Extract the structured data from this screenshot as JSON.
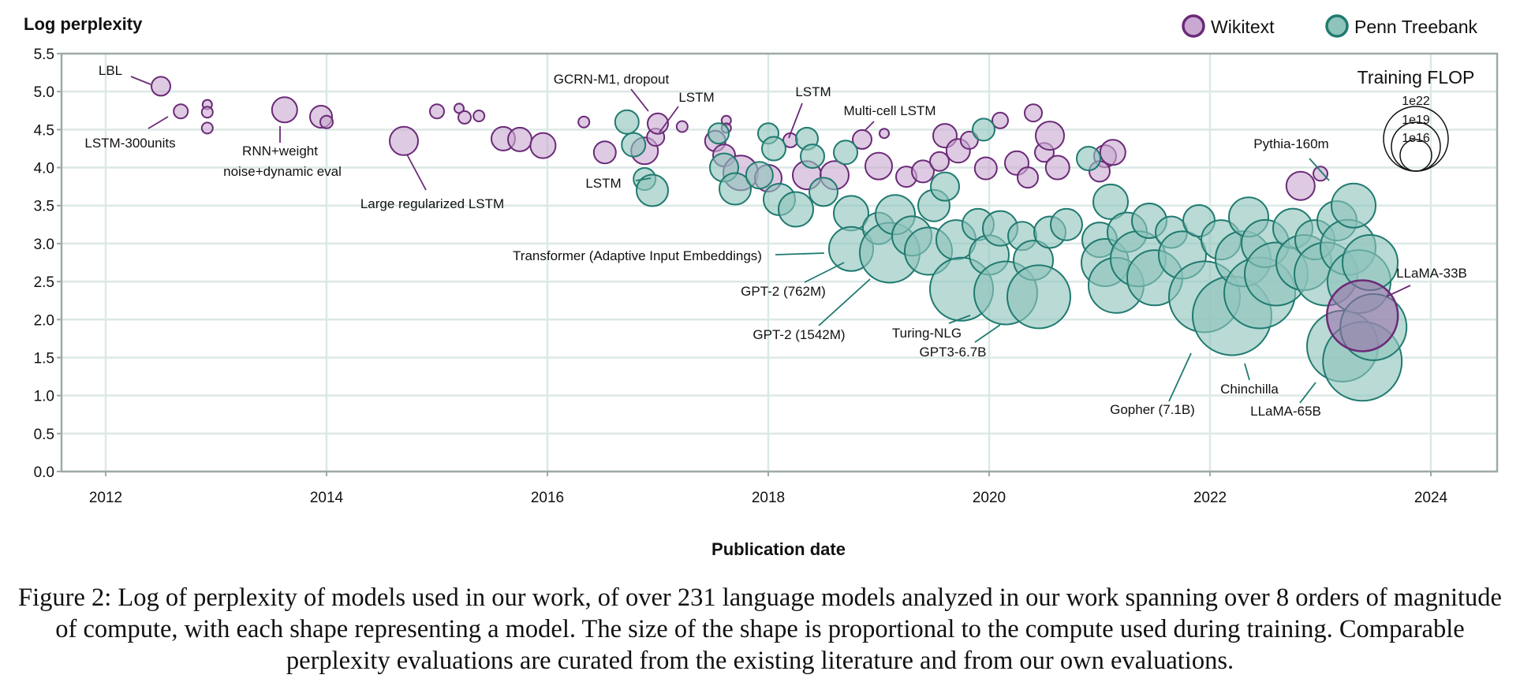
{
  "chart_data": {
    "type": "scatter",
    "ylabel": "Log perplexity",
    "xlabel": "Publication date",
    "xlim": [
      2011.6,
      2024.6
    ],
    "ylim": [
      0.0,
      5.5
    ],
    "x_ticks": [
      2012,
      2014,
      2016,
      2018,
      2020,
      2022,
      2024
    ],
    "y_ticks": [
      0.0,
      0.5,
      1.0,
      1.5,
      2.0,
      2.5,
      3.0,
      3.5,
      4.0,
      4.5,
      5.0,
      5.5
    ],
    "y_tick_labels": [
      "0.0",
      "0.5",
      "1.0",
      "1.5",
      "2.0",
      "2.5",
      "3.0",
      "3.5",
      "4.0",
      "4.5",
      "5.0",
      "5.5"
    ],
    "grid": true,
    "legend_position": "top-right",
    "size_encoding": "Training FLOP",
    "size_legend": {
      "title": "Training FLOP",
      "labels": [
        "1e22",
        "1e19",
        "1e16"
      ]
    },
    "series": [
      {
        "name": "Wikitext",
        "color": "#6b2a78",
        "fill": "#c9a9d1",
        "points": [
          {
            "x": 2012.5,
            "y": 5.07,
            "r": 12
          },
          {
            "x": 2012.68,
            "y": 4.74,
            "r": 9
          },
          {
            "x": 2012.92,
            "y": 4.83,
            "r": 6
          },
          {
            "x": 2012.92,
            "y": 4.73,
            "r": 7
          },
          {
            "x": 2012.92,
            "y": 4.52,
            "r": 7
          },
          {
            "x": 2013.62,
            "y": 4.76,
            "r": 16
          },
          {
            "x": 2013.95,
            "y": 4.67,
            "r": 14
          },
          {
            "x": 2014.0,
            "y": 4.6,
            "r": 8
          },
          {
            "x": 2014.7,
            "y": 4.35,
            "r": 18
          },
          {
            "x": 2015.0,
            "y": 4.74,
            "r": 9
          },
          {
            "x": 2015.2,
            "y": 4.78,
            "r": 6
          },
          {
            "x": 2015.25,
            "y": 4.66,
            "r": 8
          },
          {
            "x": 2015.38,
            "y": 4.68,
            "r": 7
          },
          {
            "x": 2015.6,
            "y": 4.38,
            "r": 15
          },
          {
            "x": 2015.75,
            "y": 4.37,
            "r": 15
          },
          {
            "x": 2015.96,
            "y": 4.29,
            "r": 16
          },
          {
            "x": 2016.33,
            "y": 4.6,
            "r": 7
          },
          {
            "x": 2016.52,
            "y": 4.2,
            "r": 14
          },
          {
            "x": 2016.88,
            "y": 4.22,
            "r": 17
          },
          {
            "x": 2016.98,
            "y": 4.4,
            "r": 11
          },
          {
            "x": 2017.0,
            "y": 4.58,
            "r": 13
          },
          {
            "x": 2017.22,
            "y": 4.54,
            "r": 7
          },
          {
            "x": 2017.52,
            "y": 4.35,
            "r": 13
          },
          {
            "x": 2017.62,
            "y": 4.62,
            "r": 6
          },
          {
            "x": 2017.62,
            "y": 4.52,
            "r": 6
          },
          {
            "x": 2017.6,
            "y": 4.16,
            "r": 14
          },
          {
            "x": 2017.75,
            "y": 3.93,
            "r": 22
          },
          {
            "x": 2018.0,
            "y": 3.86,
            "r": 17
          },
          {
            "x": 2018.2,
            "y": 4.36,
            "r": 9
          },
          {
            "x": 2018.35,
            "y": 3.9,
            "r": 18
          },
          {
            "x": 2018.6,
            "y": 3.9,
            "r": 18
          },
          {
            "x": 2018.85,
            "y": 4.37,
            "r": 12
          },
          {
            "x": 2019.05,
            "y": 4.45,
            "r": 6
          },
          {
            "x": 2019.0,
            "y": 4.02,
            "r": 17
          },
          {
            "x": 2019.25,
            "y": 3.88,
            "r": 13
          },
          {
            "x": 2019.4,
            "y": 3.95,
            "r": 14
          },
          {
            "x": 2019.55,
            "y": 4.08,
            "r": 12
          },
          {
            "x": 2019.6,
            "y": 4.42,
            "r": 15
          },
          {
            "x": 2019.72,
            "y": 4.22,
            "r": 15
          },
          {
            "x": 2019.82,
            "y": 4.36,
            "r": 11
          },
          {
            "x": 2019.97,
            "y": 3.99,
            "r": 14
          },
          {
            "x": 2020.1,
            "y": 4.62,
            "r": 10
          },
          {
            "x": 2020.25,
            "y": 4.06,
            "r": 15
          },
          {
            "x": 2020.35,
            "y": 3.87,
            "r": 13
          },
          {
            "x": 2020.4,
            "y": 4.72,
            "r": 11
          },
          {
            "x": 2020.5,
            "y": 4.2,
            "r": 12
          },
          {
            "x": 2020.55,
            "y": 4.42,
            "r": 18
          },
          {
            "x": 2020.62,
            "y": 4.0,
            "r": 15
          },
          {
            "x": 2021.05,
            "y": 4.15,
            "r": 14
          },
          {
            "x": 2021.0,
            "y": 3.95,
            "r": 13
          },
          {
            "x": 2021.12,
            "y": 4.2,
            "r": 16
          },
          {
            "x": 2022.82,
            "y": 3.76,
            "r": 18
          },
          {
            "x": 2023.0,
            "y": 3.92,
            "r": 9
          },
          {
            "x": 2023.38,
            "y": 2.05,
            "r": 45
          }
        ]
      },
      {
        "name": "Penn Treebank",
        "color": "#207a70",
        "fill": "#8ec4bb",
        "points": [
          {
            "x": 2016.72,
            "y": 4.6,
            "r": 15
          },
          {
            "x": 2016.78,
            "y": 4.3,
            "r": 15
          },
          {
            "x": 2016.88,
            "y": 3.85,
            "r": 14
          },
          {
            "x": 2016.95,
            "y": 3.7,
            "r": 20
          },
          {
            "x": 2017.55,
            "y": 4.45,
            "r": 13
          },
          {
            "x": 2017.6,
            "y": 4.0,
            "r": 18
          },
          {
            "x": 2017.7,
            "y": 3.72,
            "r": 20
          },
          {
            "x": 2017.92,
            "y": 3.9,
            "r": 17
          },
          {
            "x": 2018.0,
            "y": 4.45,
            "r": 13
          },
          {
            "x": 2018.05,
            "y": 4.25,
            "r": 15
          },
          {
            "x": 2018.1,
            "y": 3.58,
            "r": 20
          },
          {
            "x": 2018.25,
            "y": 3.45,
            "r": 22
          },
          {
            "x": 2018.35,
            "y": 4.38,
            "r": 14
          },
          {
            "x": 2018.4,
            "y": 4.15,
            "r": 15
          },
          {
            "x": 2018.5,
            "y": 3.68,
            "r": 18
          },
          {
            "x": 2018.7,
            "y": 4.2,
            "r": 15
          },
          {
            "x": 2018.75,
            "y": 3.4,
            "r": 22
          },
          {
            "x": 2018.75,
            "y": 2.93,
            "r": 28
          },
          {
            "x": 2019.0,
            "y": 3.2,
            "r": 20
          },
          {
            "x": 2019.1,
            "y": 2.88,
            "r": 38
          },
          {
            "x": 2019.15,
            "y": 3.38,
            "r": 25
          },
          {
            "x": 2019.3,
            "y": 3.1,
            "r": 25
          },
          {
            "x": 2019.45,
            "y": 2.9,
            "r": 30
          },
          {
            "x": 2019.5,
            "y": 3.5,
            "r": 20
          },
          {
            "x": 2019.6,
            "y": 3.75,
            "r": 18
          },
          {
            "x": 2019.7,
            "y": 3.05,
            "r": 25
          },
          {
            "x": 2019.75,
            "y": 2.4,
            "r": 40
          },
          {
            "x": 2019.9,
            "y": 3.25,
            "r": 20
          },
          {
            "x": 2019.95,
            "y": 4.5,
            "r": 14
          },
          {
            "x": 2020.0,
            "y": 2.85,
            "r": 25
          },
          {
            "x": 2020.1,
            "y": 3.2,
            "r": 22
          },
          {
            "x": 2020.15,
            "y": 2.35,
            "r": 40
          },
          {
            "x": 2020.3,
            "y": 3.1,
            "r": 18
          },
          {
            "x": 2020.4,
            "y": 2.78,
            "r": 25
          },
          {
            "x": 2020.45,
            "y": 2.3,
            "r": 40
          },
          {
            "x": 2020.55,
            "y": 3.15,
            "r": 20
          },
          {
            "x": 2020.7,
            "y": 3.25,
            "r": 20
          },
          {
            "x": 2020.9,
            "y": 4.12,
            "r": 15
          },
          {
            "x": 2021.0,
            "y": 3.05,
            "r": 22
          },
          {
            "x": 2021.05,
            "y": 2.75,
            "r": 30
          },
          {
            "x": 2021.1,
            "y": 3.55,
            "r": 22
          },
          {
            "x": 2021.15,
            "y": 2.45,
            "r": 35
          },
          {
            "x": 2021.25,
            "y": 3.15,
            "r": 25
          },
          {
            "x": 2021.35,
            "y": 2.8,
            "r": 35
          },
          {
            "x": 2021.45,
            "y": 3.3,
            "r": 22
          },
          {
            "x": 2021.5,
            "y": 2.55,
            "r": 35
          },
          {
            "x": 2021.65,
            "y": 3.15,
            "r": 20
          },
          {
            "x": 2021.75,
            "y": 2.85,
            "r": 30
          },
          {
            "x": 2021.9,
            "y": 3.3,
            "r": 20
          },
          {
            "x": 2021.95,
            "y": 2.3,
            "r": 45
          },
          {
            "x": 2022.1,
            "y": 3.05,
            "r": 25
          },
          {
            "x": 2022.2,
            "y": 2.05,
            "r": 50
          },
          {
            "x": 2022.3,
            "y": 2.8,
            "r": 35
          },
          {
            "x": 2022.35,
            "y": 3.35,
            "r": 25
          },
          {
            "x": 2022.45,
            "y": 2.35,
            "r": 45
          },
          {
            "x": 2022.5,
            "y": 3.0,
            "r": 30
          },
          {
            "x": 2022.6,
            "y": 2.6,
            "r": 40
          },
          {
            "x": 2022.75,
            "y": 3.2,
            "r": 25
          },
          {
            "x": 2022.85,
            "y": 2.75,
            "r": 35
          },
          {
            "x": 2022.95,
            "y": 3.05,
            "r": 25
          },
          {
            "x": 2023.05,
            "y": 2.6,
            "r": 40
          },
          {
            "x": 2023.15,
            "y": 3.3,
            "r": 25
          },
          {
            "x": 2023.2,
            "y": 1.65,
            "r": 45
          },
          {
            "x": 2023.25,
            "y": 2.95,
            "r": 35
          },
          {
            "x": 2023.3,
            "y": 3.5,
            "r": 28
          },
          {
            "x": 2023.35,
            "y": 2.5,
            "r": 40
          },
          {
            "x": 2023.38,
            "y": 1.45,
            "r": 50
          },
          {
            "x": 2023.45,
            "y": 2.75,
            "r": 35
          },
          {
            "x": 2023.48,
            "y": 1.9,
            "r": 42
          }
        ]
      }
    ],
    "annotations": [
      {
        "text": "LBL",
        "x": 2012.5,
        "y": 5.07
      },
      {
        "text": "LSTM-300units",
        "x": 2012.68,
        "y": 4.74
      },
      {
        "text": "RNN+weight",
        "x": 2013.62,
        "y": 4.55
      },
      {
        "text": "noise+dynamic eval",
        "x": 2013.62,
        "y": 4.55
      },
      {
        "text": "Large regularized LSTM",
        "x": 2014.7,
        "y": 4.35
      },
      {
        "text": "GCRN-M1, dropout",
        "x": 2017.0,
        "y": 4.58
      },
      {
        "text": "LSTM",
        "x": 2017.0,
        "y": 4.4
      },
      {
        "text": "LSTM",
        "x": 2016.88,
        "y": 3.85
      },
      {
        "text": "LSTM",
        "x": 2018.2,
        "y": 4.36
      },
      {
        "text": "Multi-cell LSTM",
        "x": 2019.05,
        "y": 4.45
      },
      {
        "text": "Pythia-160m",
        "x": 2023.0,
        "y": 3.6
      },
      {
        "text": "Transformer (Adaptive Input Embeddings)",
        "x": 2018.75,
        "y": 2.93
      },
      {
        "text": "GPT-2 (762M)",
        "x": 2018.95,
        "y": 2.9
      },
      {
        "text": "GPT-2 (1542M)",
        "x": 2019.05,
        "y": 2.5
      },
      {
        "text": "Turing-NLG",
        "x": 2019.9,
        "y": 2.1
      },
      {
        "text": "GPT3-6.7B",
        "x": 2020.15,
        "y": 2.0
      },
      {
        "text": "LLaMA-33B",
        "x": 2023.7,
        "y": 2.05
      },
      {
        "text": "Gopher (7.1B)",
        "x": 2021.95,
        "y": 2.1
      },
      {
        "text": "Chinchilla",
        "x": 2022.3,
        "y": 1.4
      },
      {
        "text": "LLaMA-65B",
        "x": 2023.3,
        "y": 1.15
      }
    ]
  },
  "legend": {
    "wikitext": "Wikitext",
    "ptb": "Penn Treebank"
  },
  "caption": "Figure 2: Log of perplexity of models used in our work, of over 231 language models analyzed in our work spanning over 8 orders of magnitude of compute, with each shape representing a model. The size of the shape is proportional to the compute used during training. Comparable perplexity evaluations are curated from the existing literature and from our own evaluations."
}
